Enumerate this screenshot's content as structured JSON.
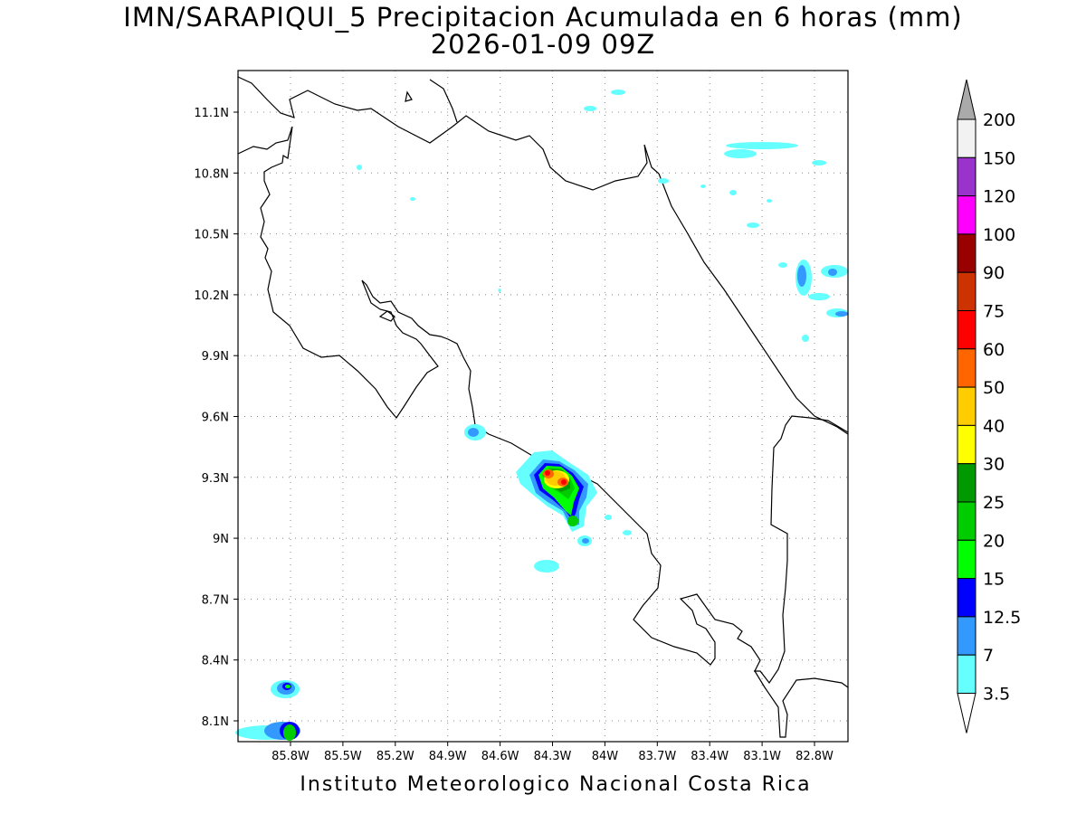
{
  "title": {
    "line1": "IMN/SARAPIQUI_5 Precipitacion Acumulada en 6 horas (mm)",
    "line2": "2026-01-09 09Z"
  },
  "footer": "Instituto Meteorologico Nacional Costa Rica",
  "map": {
    "lat_ticks": [
      "11.1N",
      "10.8N",
      "10.5N",
      "10.2N",
      "9.9N",
      "9.6N",
      "9.3N",
      "9N",
      "8.7N",
      "8.4N",
      "8.1N"
    ],
    "lon_ticks": [
      "85.8W",
      "85.5W",
      "85.2W",
      "84.9W",
      "84.6W",
      "84.3W",
      "84W",
      "83.7W",
      "83.4W",
      "83.1W",
      "82.8W"
    ],
    "lat_range": [
      8.0,
      11.3
    ],
    "lon_range": [
      -86.0,
      -82.75
    ],
    "grid": true
  },
  "colorbar": {
    "levels": [
      "3.5",
      "7",
      "12.5",
      "15",
      "20",
      "25",
      "30",
      "40",
      "50",
      "60",
      "75",
      "90",
      "100",
      "120",
      "150",
      "200"
    ],
    "colors": [
      "#ffffff",
      "#66ffff",
      "#3399ff",
      "#0000ff",
      "#00ff00",
      "#00cc00",
      "#009900",
      "#ffff00",
      "#ffcc00",
      "#ff6600",
      "#ff0000",
      "#cc3300",
      "#990000",
      "#ff00ff",
      "#9933cc",
      "#f2f2f2",
      "#aaaaaa"
    ]
  }
}
